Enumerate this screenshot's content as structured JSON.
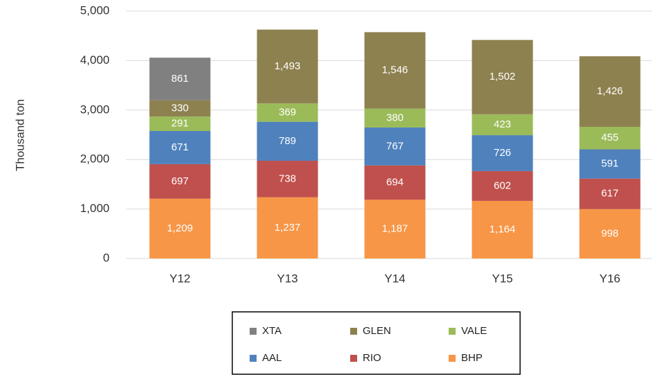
{
  "chart_data": {
    "type": "stacked_bar",
    "y_label": "Thousand ton",
    "categories": [
      "Y12",
      "Y13",
      "Y14",
      "Y15",
      "Y16"
    ],
    "series": [
      {
        "name": "BHP",
        "color": "#f79646",
        "values": [
          1209,
          1237,
          1187,
          1164,
          998
        ],
        "value_labels": [
          "1,209",
          "1,237",
          "1,187",
          "1,164",
          "998"
        ]
      },
      {
        "name": "RIO",
        "color": "#c0504d",
        "values": [
          697,
          738,
          694,
          602,
          617
        ],
        "value_labels": [
          "697",
          "738",
          "694",
          "602",
          "617"
        ]
      },
      {
        "name": "AAL",
        "color": "#4f81bd",
        "values": [
          671,
          789,
          767,
          726,
          591
        ],
        "value_labels": [
          "671",
          "789",
          "767",
          "726",
          "591"
        ]
      },
      {
        "name": "VALE",
        "color": "#9bbb59",
        "values": [
          291,
          369,
          380,
          423,
          455
        ],
        "value_labels": [
          "291",
          "369",
          "380",
          "423",
          "455"
        ]
      },
      {
        "name": "GLEN",
        "color": "#8e8150",
        "values": [
          330,
          1493,
          1546,
          1502,
          1426
        ],
        "value_labels": [
          "330",
          "1,493",
          "1,546",
          "1,502",
          "1,426"
        ]
      },
      {
        "name": "XTA",
        "color": "#808080",
        "values": [
          861,
          null,
          null,
          null,
          null
        ],
        "value_labels": [
          "861",
          null,
          null,
          null,
          null
        ]
      }
    ],
    "ylim": [
      0,
      5000
    ],
    "yticks": [
      0,
      {
        "value": 1000,
        "label": "1,000"
      },
      {
        "value": 2000,
        "label": "2,000"
      },
      {
        "value": 3000,
        "label": "3,000"
      },
      {
        "value": 4000,
        "label": "4,000"
      },
      {
        "value": 5000,
        "label": "5,000"
      }
    ],
    "grid": true,
    "legend": "bottom"
  }
}
